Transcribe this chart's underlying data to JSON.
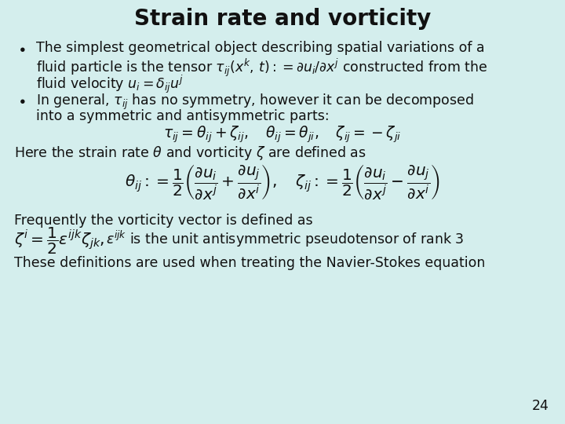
{
  "title": "Strain rate and vorticity",
  "background_color": "#d4eeed",
  "title_fontsize": 20,
  "body_fontsize": 12.5,
  "page_number": "24",
  "text_color": "#111111",
  "bullet1_line1": "The simplest geometrical object describing spatial variations of a",
  "bullet1_line2": "fluid particle is the tensor $\\tau_{ij}(x^k,\\, t) := \\partial u_i / \\partial x^j$ constructed from the",
  "bullet1_line3": "fluid velocity $u_i = \\delta_{ij} u^j$",
  "bullet2_line1": "In general, $\\tau_{ij}$ has no symmetry, however it can be decomposed",
  "bullet2_line2": "into a symmetric and antisymmetric parts:",
  "eq1": "$\\tau_{ij} = \\theta_{ij} + \\zeta_{ij}, \\quad \\theta_{ij} = \\theta_{ji}, \\quad \\zeta_{ij} = -\\zeta_{ji}$",
  "text_here": "Here the strain rate $\\theta$ and vorticity $\\zeta$ are defined as",
  "eq2": "$\\theta_{ij} := \\dfrac{1}{2}\\left(\\dfrac{\\partial u_i}{\\partial x^j} + \\dfrac{\\partial u_j}{\\partial x^i}\\right), \\quad \\zeta_{ij} := \\dfrac{1}{2}\\left(\\dfrac{\\partial u_i}{\\partial x^j} - \\dfrac{\\partial u_j}{\\partial x^i}\\right)$",
  "text_freq": "Frequently the vorticity vector is defined as",
  "eq3": "$\\zeta^i = \\dfrac{1}{2}\\varepsilon^{ijk}\\zeta_{jk},$",
  "text_eps": "$\\varepsilon^{ijk}$ is the unit antisymmetric pseudotensor of rank 3",
  "text_last": "These definitions are used when treating the Navier-Stokes equation"
}
